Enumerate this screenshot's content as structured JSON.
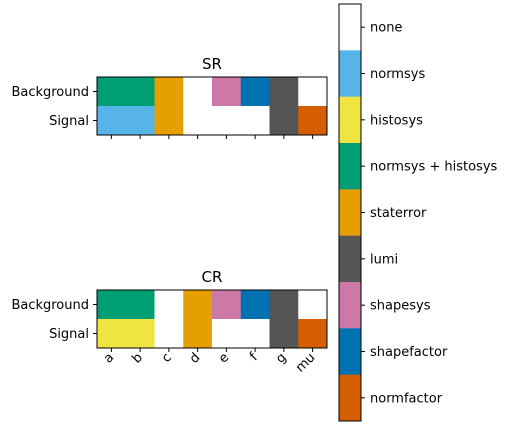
{
  "chart_data": [
    {
      "type": "heatmap",
      "title": "SR",
      "x_categories": [
        "a",
        "b",
        "c",
        "d",
        "e",
        "f",
        "g",
        "mu"
      ],
      "show_x_labels": false,
      "rows": [
        "Background",
        "Signal"
      ],
      "cells": [
        [
          "normsys + histosys",
          "normsys + histosys",
          "staterror",
          "none",
          "shapesys",
          "shapefactor",
          "lumi",
          "none"
        ],
        [
          "normsys",
          "normsys",
          "staterror",
          "none",
          "none",
          "none",
          "lumi",
          "normfactor"
        ]
      ]
    },
    {
      "type": "heatmap",
      "title": "CR",
      "x_categories": [
        "a",
        "b",
        "c",
        "d",
        "e",
        "f",
        "g",
        "mu"
      ],
      "show_x_labels": true,
      "rows": [
        "Background",
        "Signal"
      ],
      "cells": [
        [
          "normsys + histosys",
          "normsys + histosys",
          "none",
          "staterror",
          "shapesys",
          "shapefactor",
          "lumi",
          "none"
        ],
        [
          "histosys",
          "histosys",
          "none",
          "staterror",
          "none",
          "none",
          "lumi",
          "normfactor"
        ]
      ]
    }
  ],
  "colorbar": {
    "categories": [
      {
        "label": "none",
        "color": "#ffffff"
      },
      {
        "label": "normsys",
        "color": "#56b4e9"
      },
      {
        "label": "histosys",
        "color": "#f0e442"
      },
      {
        "label": "normsys + histosys",
        "color": "#009e73"
      },
      {
        "label": "staterror",
        "color": "#e69f00"
      },
      {
        "label": "lumi",
        "color": "#555555"
      },
      {
        "label": "shapesys",
        "color": "#cc79a7"
      },
      {
        "label": "shapefactor",
        "color": "#0072b2"
      },
      {
        "label": "normfactor",
        "color": "#d55e00"
      }
    ]
  }
}
